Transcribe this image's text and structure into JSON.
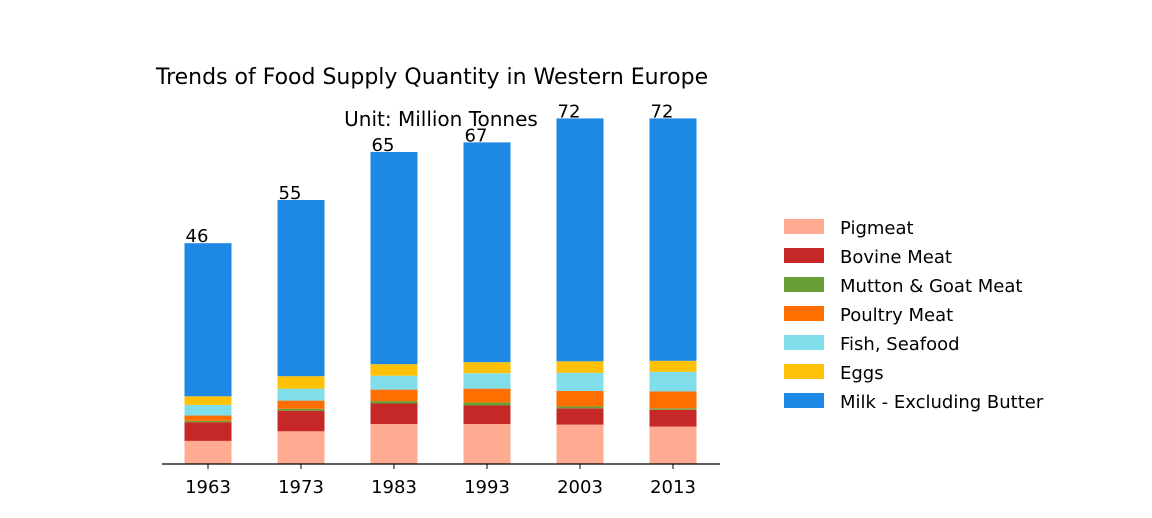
{
  "chart_data": {
    "type": "bar",
    "stacked": true,
    "title": "Trends of Food Supply Quantity in Western Europe",
    "subtitle": "Unit: Million Tonnes",
    "categories": [
      "1963",
      "1973",
      "1983",
      "1993",
      "2003",
      "2013"
    ],
    "totals": [
      "46",
      "55",
      "65",
      "67",
      "72",
      "72"
    ],
    "ylim": [
      0,
      80
    ],
    "grid": false,
    "legend_position": "right",
    "series": [
      {
        "name": "Pigmeat",
        "color": "#ffab91",
        "values": [
          4.8,
          6.8,
          8.3,
          8.3,
          8.2,
          7.8
        ]
      },
      {
        "name": "Bovine Meat",
        "color": "#c62828",
        "values": [
          3.9,
          4.3,
          4.3,
          3.9,
          3.4,
          3.5
        ]
      },
      {
        "name": "Mutton & Goat Meat",
        "color": "#689f38",
        "values": [
          0.3,
          0.4,
          0.5,
          0.6,
          0.4,
          0.3
        ]
      },
      {
        "name": "Poultry Meat",
        "color": "#ff6f00",
        "values": [
          1.1,
          1.7,
          2.4,
          2.9,
          3.2,
          3.5
        ]
      },
      {
        "name": "Fish, Seafood",
        "color": "#80deea",
        "values": [
          2.2,
          2.5,
          2.9,
          3.2,
          3.8,
          4.1
        ]
      },
      {
        "name": "Eggs",
        "color": "#ffc107",
        "values": [
          1.8,
          2.6,
          2.4,
          2.3,
          2.4,
          2.3
        ]
      },
      {
        "name": "Milk - Excluding Butter",
        "color": "#1e88e5",
        "values": [
          31.9,
          36.7,
          44.2,
          45.8,
          50.6,
          50.5
        ]
      }
    ]
  }
}
